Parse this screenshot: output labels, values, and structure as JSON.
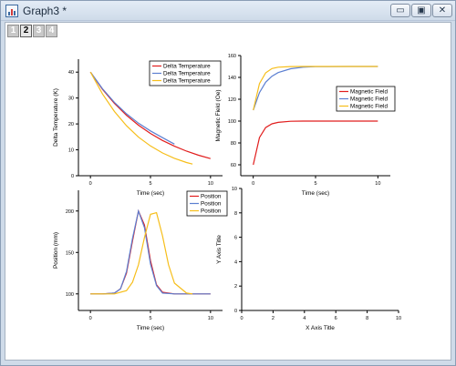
{
  "window": {
    "title": "Graph3 *",
    "buttons": {
      "minimize": "▭",
      "maximize": "▣",
      "close": "✕"
    }
  },
  "layers": [
    "1",
    "2",
    "3",
    "4"
  ],
  "active_layer": "2",
  "colors": {
    "red": "#e11d1d",
    "blue": "#5b7fd1",
    "orange": "#f6be1a"
  },
  "chart_data": [
    {
      "type": "line",
      "xlabel": "Time (sec)",
      "ylabel": "Delta Temperature (K)",
      "xlim": [
        -1,
        11
      ],
      "ylim": [
        0,
        45
      ],
      "xticks": [
        0,
        5,
        10
      ],
      "yticks": [
        0,
        10,
        20,
        30,
        40
      ],
      "legend": "top-right",
      "series": [
        {
          "name": "Delta Temperature",
          "color": "#e11d1d",
          "x": [
            0,
            1,
            2,
            3,
            4,
            5,
            6,
            7,
            8,
            9,
            10
          ],
          "y": [
            40,
            33.4,
            27.9,
            23.3,
            19.5,
            16.3,
            13.6,
            11.4,
            9.5,
            7.9,
            6.6
          ]
        },
        {
          "name": "Delta Temperature",
          "color": "#5b7fd1",
          "x": [
            0,
            1,
            2,
            3,
            4,
            5,
            6,
            7
          ],
          "y": [
            40,
            33.6,
            28.3,
            23.9,
            20.3,
            17.3,
            14.7,
            12.2
          ]
        },
        {
          "name": "Delta Temperature",
          "color": "#f6be1a",
          "x": [
            0,
            1,
            2,
            3,
            4,
            5,
            6,
            7,
            8,
            8.5
          ],
          "y": [
            40,
            31.6,
            24.8,
            19.3,
            14.9,
            11.5,
            8.8,
            6.7,
            5.1,
            4.5
          ]
        }
      ]
    },
    {
      "type": "line",
      "xlabel": "Time (sec)",
      "ylabel": "Magnetic Field (Oe)",
      "xlim": [
        -1,
        11
      ],
      "ylim": [
        50,
        160
      ],
      "xticks": [
        0,
        5,
        10
      ],
      "yticks": [
        60,
        80,
        100,
        120,
        140,
        160
      ],
      "legend": "center-right",
      "series": [
        {
          "name": "Magnetic Field",
          "color": "#e11d1d",
          "x": [
            0,
            0.5,
            1,
            1.5,
            2,
            3,
            4,
            5,
            6,
            8,
            10
          ],
          "y": [
            60,
            84.9,
            94.1,
            97.5,
            98.8,
            99.8,
            100,
            100,
            100,
            100,
            100
          ]
        },
        {
          "name": "Magnetic Field",
          "color": "#5b7fd1",
          "x": [
            0,
            0.5,
            1,
            1.5,
            2,
            3,
            4,
            5,
            6,
            8,
            10
          ],
          "y": [
            110,
            126.1,
            135.6,
            141.1,
            144.4,
            147.9,
            149.3,
            149.8,
            149.9,
            150,
            150
          ]
        },
        {
          "name": "Magnetic Field",
          "color": "#f6be1a",
          "x": [
            0,
            0.5,
            1,
            1.5,
            2,
            3,
            4,
            5,
            6,
            8,
            10
          ],
          "y": [
            110,
            134.3,
            144.2,
            148.1,
            149.3,
            149.9,
            150,
            150,
            150,
            150,
            150
          ]
        }
      ]
    },
    {
      "type": "line",
      "xlabel": "Time (sec)",
      "ylabel": "Position (mm)",
      "xlim": [
        -1,
        11
      ],
      "ylim": [
        80,
        225
      ],
      "xticks": [
        0,
        5,
        10
      ],
      "yticks": [
        100,
        150,
        200
      ],
      "legend": "top-right",
      "series": [
        {
          "name": "Position",
          "color": "#e11d1d",
          "x": [
            0,
            1,
            2,
            2.5,
            3,
            3.5,
            4,
            4.5,
            5,
            5.5,
            6,
            7,
            8,
            9,
            10
          ],
          "y": [
            100,
            100,
            101,
            106,
            125,
            164,
            200,
            183,
            140,
            111,
            102,
            100,
            100,
            100,
            100
          ]
        },
        {
          "name": "Position",
          "color": "#5b7fd1",
          "x": [
            0,
            1,
            2,
            2.5,
            3,
            3.5,
            4,
            4.5,
            5,
            5.5,
            6,
            7,
            8,
            9,
            10
          ],
          "y": [
            100,
            100,
            101,
            106,
            127,
            167,
            200,
            180,
            136,
            110,
            101,
            100,
            100,
            100,
            100
          ]
        },
        {
          "name": "Position",
          "color": "#f6be1a",
          "x": [
            0,
            1,
            2,
            3,
            3.5,
            4,
            4.5,
            5,
            5.5,
            6,
            6.5,
            7,
            8,
            8.5
          ],
          "y": [
            100,
            100,
            100,
            104,
            114,
            135,
            168,
            196,
            198,
            170,
            135,
            113,
            101,
            100
          ]
        }
      ]
    },
    {
      "type": "line",
      "xlabel": "X Axis Title",
      "ylabel": "Y Axis Title",
      "xlim": [
        0,
        10
      ],
      "ylim": [
        0,
        10
      ],
      "xticks": [
        0,
        2,
        4,
        6,
        8,
        10
      ],
      "yticks": [
        0,
        2,
        4,
        6,
        8,
        10
      ],
      "series": []
    }
  ]
}
